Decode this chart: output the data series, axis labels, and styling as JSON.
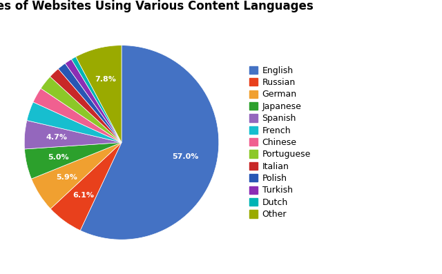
{
  "title": "Percentages of Websites Using Various Content Languages",
  "labels": [
    "English",
    "Russian",
    "German",
    "Japanese",
    "Spanish",
    "French",
    "Chinese",
    "Portuguese",
    "Italian",
    "Polish",
    "Turkish",
    "Dutch",
    "Other"
  ],
  "values": [
    55.5,
    5.9,
    5.7,
    4.9,
    4.6,
    3.1,
    2.5,
    2.4,
    1.8,
    1.4,
    1.2,
    0.8,
    7.6
  ],
  "colors": [
    "#4472c4",
    "#e8401c",
    "#f0a030",
    "#2ca02c",
    "#9467bd",
    "#17becf",
    "#f06090",
    "#8cc828",
    "#c82828",
    "#2856b4",
    "#8b2db4",
    "#00b4b4",
    "#9aaa00"
  ],
  "shown_pct_labels": [
    "English",
    "Russian",
    "German",
    "Japanese",
    "Spanish",
    "Other"
  ],
  "title_fontsize": 12,
  "legend_fontsize": 9
}
